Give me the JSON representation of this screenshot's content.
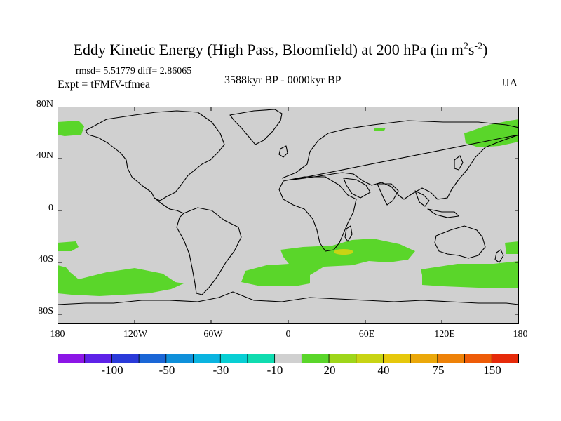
{
  "title": {
    "main": "Eddy Kinetic Energy (High Pass, Bloomfield) at 200 hPa (in m",
    "sup1": "2",
    "mid": "s",
    "sup2": "-2",
    "close": ")"
  },
  "stats": "rmsd= 5.51779 diff= 2.86065",
  "experiment": "Expt = tFMfV-tfmea",
  "period": "3588kyr BP - 0000kyr BP",
  "season": "JJA",
  "latitude_labels": [
    "80N",
    "40N",
    "0",
    "40S",
    "80S"
  ],
  "longitude_labels": [
    "180",
    "120W",
    "60W",
    "0",
    "60E",
    "120E",
    "180"
  ],
  "colorbar": {
    "colors": [
      "#8c16e6",
      "#5e22e8",
      "#2a3ad9",
      "#1a66d6",
      "#0f90da",
      "#0ab4e0",
      "#08cfd4",
      "#10dcb0",
      "#d0d0d0",
      "#5ad62a",
      "#9ed61a",
      "#c8d414",
      "#e6c80c",
      "#eba80a",
      "#ee8208",
      "#ee5c08",
      "#e62a0a"
    ],
    "labels": [
      "-100",
      "-50",
      "-30",
      "-10",
      "20",
      "40",
      "75",
      "150"
    ]
  },
  "colors": {
    "land_ocean_background": "#d0d0d0",
    "positive_anomaly": "#5ad62a",
    "strong_anomaly": "#c8d414",
    "coastline": "#000000"
  }
}
